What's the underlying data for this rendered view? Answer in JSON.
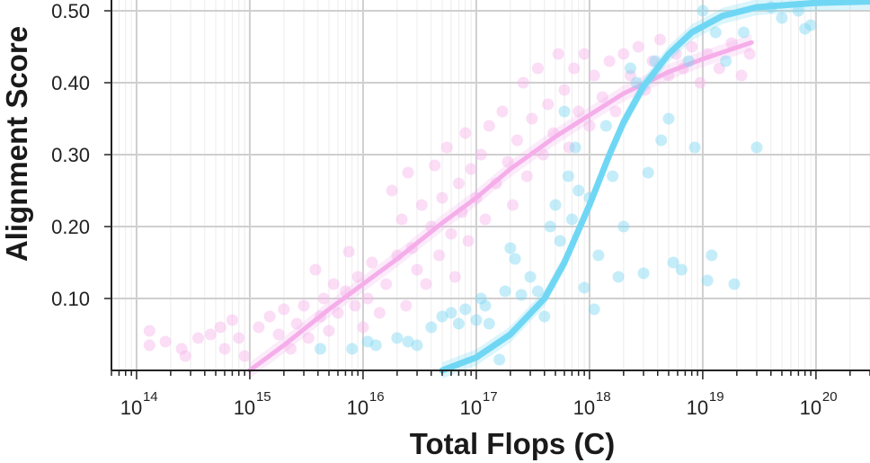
{
  "chart_data": {
    "type": "scatter",
    "title": "",
    "xlabel": "Total Flops (C)",
    "ylabel": "Alignment Score",
    "x_scale": "log10",
    "xlim": [
      60000000000000.0,
      3e+20
    ],
    "ylim": [
      0.0,
      0.515
    ],
    "grid": true,
    "legend": "none",
    "x_ticks": [
      {
        "base": "10",
        "exp": "14",
        "value": 100000000000000.0
      },
      {
        "base": "10",
        "exp": "15",
        "value": 1000000000000000.0
      },
      {
        "base": "10",
        "exp": "16",
        "value": 1e+16
      },
      {
        "base": "10",
        "exp": "17",
        "value": 1e+17
      },
      {
        "base": "10",
        "exp": "18",
        "value": 1e+18
      },
      {
        "base": "10",
        "exp": "19",
        "value": 1e+19
      },
      {
        "base": "10",
        "exp": "20",
        "value": 1e+20
      }
    ],
    "y_ticks": [
      {
        "label": "0.10",
        "value": 0.1
      },
      {
        "label": "0.20",
        "value": 0.2
      },
      {
        "label": "0.30",
        "value": 0.3
      },
      {
        "label": "0.40",
        "value": 0.4
      },
      {
        "label": "0.50",
        "value": 0.5
      }
    ],
    "series": [
      {
        "color": "#f7b3ec",
        "line_color": "#f5aeea",
        "points": [
          [
            130000000000000.0,
            0.055
          ],
          [
            130000000000000.0,
            0.035
          ],
          [
            180000000000000.0,
            0.04
          ],
          [
            250000000000000.0,
            0.03
          ],
          [
            270000000000000.0,
            0.02
          ],
          [
            350000000000000.0,
            0.045
          ],
          [
            450000000000000.0,
            0.05
          ],
          [
            550000000000000.0,
            0.06
          ],
          [
            600000000000000.0,
            0.03
          ],
          [
            700000000000000.0,
            0.07
          ],
          [
            800000000000000.0,
            0.045
          ],
          [
            900000000000000.0,
            0.02
          ],
          [
            1200000000000000.0,
            0.06
          ],
          [
            1500000000000000.0,
            0.075
          ],
          [
            1800000000000000.0,
            0.05
          ],
          [
            2000000000000000.0,
            0.085
          ],
          [
            2300000000000000.0,
            0.03
          ],
          [
            2600000000000000.0,
            0.065
          ],
          [
            3000000000000000.0,
            0.09
          ],
          [
            3300000000000000.0,
            0.045
          ],
          [
            3800000000000000.0,
            0.14
          ],
          [
            4200000000000000.0,
            0.075
          ],
          [
            4500000000000000.0,
            0.1
          ],
          [
            5000000000000000.0,
            0.055
          ],
          [
            5500000000000000.0,
            0.12
          ],
          [
            6000000000000000.0,
            0.08
          ],
          [
            7000000000000000.0,
            0.11
          ],
          [
            7500000000000000.0,
            0.165
          ],
          [
            8500000000000000.0,
            0.09
          ],
          [
            9000000000000000.0,
            0.13
          ],
          [
            1e+16,
            0.06
          ],
          [
            1.1e+16,
            0.1
          ],
          [
            1.2e+16,
            0.15
          ],
          [
            1.4e+16,
            0.08
          ],
          [
            1.6e+16,
            0.12
          ],
          [
            1.8e+16,
            0.25
          ],
          [
            2e+16,
            0.16
          ],
          [
            2.2e+16,
            0.21
          ],
          [
            2.4e+16,
            0.09
          ],
          [
            2.5e+16,
            0.275
          ],
          [
            2.7e+16,
            0.17
          ],
          [
            3e+16,
            0.14
          ],
          [
            3.3e+16,
            0.23
          ],
          [
            3.6e+16,
            0.12
          ],
          [
            4e+16,
            0.2
          ],
          [
            4.3e+16,
            0.285
          ],
          [
            4.7e+16,
            0.16
          ],
          [
            5e+16,
            0.24
          ],
          [
            5.5e+16,
            0.31
          ],
          [
            6e+16,
            0.19
          ],
          [
            6.5e+16,
            0.13
          ],
          [
            7e+16,
            0.26
          ],
          [
            7.5e+16,
            0.22
          ],
          [
            8e+16,
            0.33
          ],
          [
            8.5e+16,
            0.18
          ],
          [
            9e+16,
            0.28
          ],
          [
            1e+17,
            0.24
          ],
          [
            1.1e+17,
            0.3
          ],
          [
            1.2e+17,
            0.21
          ],
          [
            1.3e+17,
            0.34
          ],
          [
            1.5e+17,
            0.26
          ],
          [
            1.7e+17,
            0.36
          ],
          [
            1.9e+17,
            0.29
          ],
          [
            2.1e+17,
            0.23
          ],
          [
            2.3e+17,
            0.32
          ],
          [
            2.6e+17,
            0.4
          ],
          [
            2.8e+17,
            0.27
          ],
          [
            3.1e+17,
            0.35
          ],
          [
            3.5e+17,
            0.42
          ],
          [
            3.9e+17,
            0.3
          ],
          [
            4.3e+17,
            0.37
          ],
          [
            4.8e+17,
            0.33
          ],
          [
            5.3e+17,
            0.44
          ],
          [
            6e+17,
            0.39
          ],
          [
            6.6e+17,
            0.31
          ],
          [
            7.3e+17,
            0.42
          ],
          [
            8e+17,
            0.36
          ],
          [
            9e+17,
            0.44
          ],
          [
            1e+18,
            0.34
          ],
          [
            1.1e+18,
            0.41
          ],
          [
            1.3e+18,
            0.38
          ],
          [
            1.5e+18,
            0.43
          ],
          [
            1.7e+18,
            0.36
          ],
          [
            2e+18,
            0.44
          ],
          [
            2.3e+18,
            0.41
          ],
          [
            2.7e+18,
            0.45
          ],
          [
            3.1e+18,
            0.39
          ],
          [
            3.6e+18,
            0.43
          ],
          [
            4.2e+18,
            0.46
          ],
          [
            5e+18,
            0.41
          ],
          [
            5.8e+18,
            0.44
          ],
          [
            6.7e+18,
            0.42
          ],
          [
            8e+18,
            0.45
          ],
          [
            9.5e+18,
            0.4
          ],
          [
            1.1e+19,
            0.44
          ],
          [
            1.4e+19,
            0.42
          ],
          [
            1.8e+19,
            0.455
          ],
          [
            2.2e+19,
            0.41
          ],
          [
            2.6e+19,
            0.44
          ]
        ],
        "fit": [
          [
            1000000000000000.0,
            0.0
          ],
          [
            2000000000000000.0,
            0.035
          ],
          [
            5000000000000000.0,
            0.085
          ],
          [
            1e+16,
            0.12
          ],
          [
            2e+16,
            0.155
          ],
          [
            5e+16,
            0.205
          ],
          [
            1e+17,
            0.24
          ],
          [
            2e+17,
            0.28
          ],
          [
            5e+17,
            0.325
          ],
          [
            1e+18,
            0.355
          ],
          [
            2e+18,
            0.385
          ],
          [
            5e+18,
            0.415
          ],
          [
            1e+19,
            0.433
          ],
          [
            2.7e+19,
            0.456
          ]
        ]
      },
      {
        "color": "#7dd8f2",
        "line_color": "#6fd7f4",
        "points": [
          [
            4200000000000000.0,
            0.03
          ],
          [
            8000000000000000.0,
            0.03
          ],
          [
            1.1e+16,
            0.04
          ],
          [
            1.3e+16,
            0.035
          ],
          [
            2e+16,
            0.045
          ],
          [
            2.5e+16,
            0.04
          ],
          [
            3e+16,
            0.035
          ],
          [
            4e+16,
            0.06
          ],
          [
            5e+16,
            0.075
          ],
          [
            6e+16,
            0.08
          ],
          [
            7e+16,
            0.065
          ],
          [
            8e+16,
            0.085
          ],
          [
            1e+17,
            0.07
          ],
          [
            1.1e+17,
            0.1
          ],
          [
            1.2e+17,
            0.09
          ],
          [
            1.3e+17,
            0.065
          ],
          [
            1.6e+17,
            0.015
          ],
          [
            1.8e+17,
            0.11
          ],
          [
            2e+17,
            0.17
          ],
          [
            2.2e+17,
            0.155
          ],
          [
            2.5e+17,
            0.105
          ],
          [
            3e+17,
            0.13
          ],
          [
            3.5e+17,
            0.11
          ],
          [
            4e+17,
            0.075
          ],
          [
            4.5e+17,
            0.2
          ],
          [
            5e+17,
            0.23
          ],
          [
            5.5e+17,
            0.18
          ],
          [
            6e+17,
            0.36
          ],
          [
            6.5e+17,
            0.27
          ],
          [
            7e+17,
            0.21
          ],
          [
            7.5e+17,
            0.31
          ],
          [
            8e+17,
            0.25
          ],
          [
            9e+17,
            0.115
          ],
          [
            1e+18,
            0.24
          ],
          [
            1.1e+18,
            0.085
          ],
          [
            1.2e+18,
            0.16
          ],
          [
            1.4e+18,
            0.34
          ],
          [
            1.6e+18,
            0.27
          ],
          [
            1.8e+18,
            0.13
          ],
          [
            2e+18,
            0.2
          ],
          [
            2.3e+18,
            0.42
          ],
          [
            2.6e+18,
            0.4
          ],
          [
            3e+18,
            0.135
          ],
          [
            3.3e+18,
            0.275
          ],
          [
            3.8e+18,
            0.43
          ],
          [
            4.3e+18,
            0.32
          ],
          [
            5e+18,
            0.35
          ],
          [
            5.5e+18,
            0.15
          ],
          [
            6.5e+18,
            0.14
          ],
          [
            7.5e+18,
            0.43
          ],
          [
            8.5e+18,
            0.31
          ],
          [
            1e+19,
            0.5
          ],
          [
            1.1e+19,
            0.125
          ],
          [
            1.2e+19,
            0.16
          ],
          [
            1.3e+19,
            0.47
          ],
          [
            1.6e+19,
            0.43
          ],
          [
            1.9e+19,
            0.12
          ],
          [
            2.3e+19,
            0.47
          ],
          [
            3e+19,
            0.31
          ],
          [
            4e+19,
            0.505
          ],
          [
            5e+19,
            0.49
          ],
          [
            7e+19,
            0.5
          ],
          [
            8e+19,
            0.475
          ],
          [
            9e+19,
            0.48
          ]
        ],
        "fit": [
          [
            5e+16,
            0.0
          ],
          [
            1e+17,
            0.018
          ],
          [
            2e+17,
            0.05
          ],
          [
            4e+17,
            0.1
          ],
          [
            6e+17,
            0.15
          ],
          [
            1e+18,
            0.23
          ],
          [
            1.5e+18,
            0.3
          ],
          [
            2e+18,
            0.345
          ],
          [
            3e+18,
            0.395
          ],
          [
            5e+18,
            0.44
          ],
          [
            8e+18,
            0.47
          ],
          [
            1.5e+19,
            0.493
          ],
          [
            3e+19,
            0.505
          ],
          [
            1e+20,
            0.511
          ],
          [
            3e+20,
            0.513
          ]
        ]
      }
    ]
  }
}
